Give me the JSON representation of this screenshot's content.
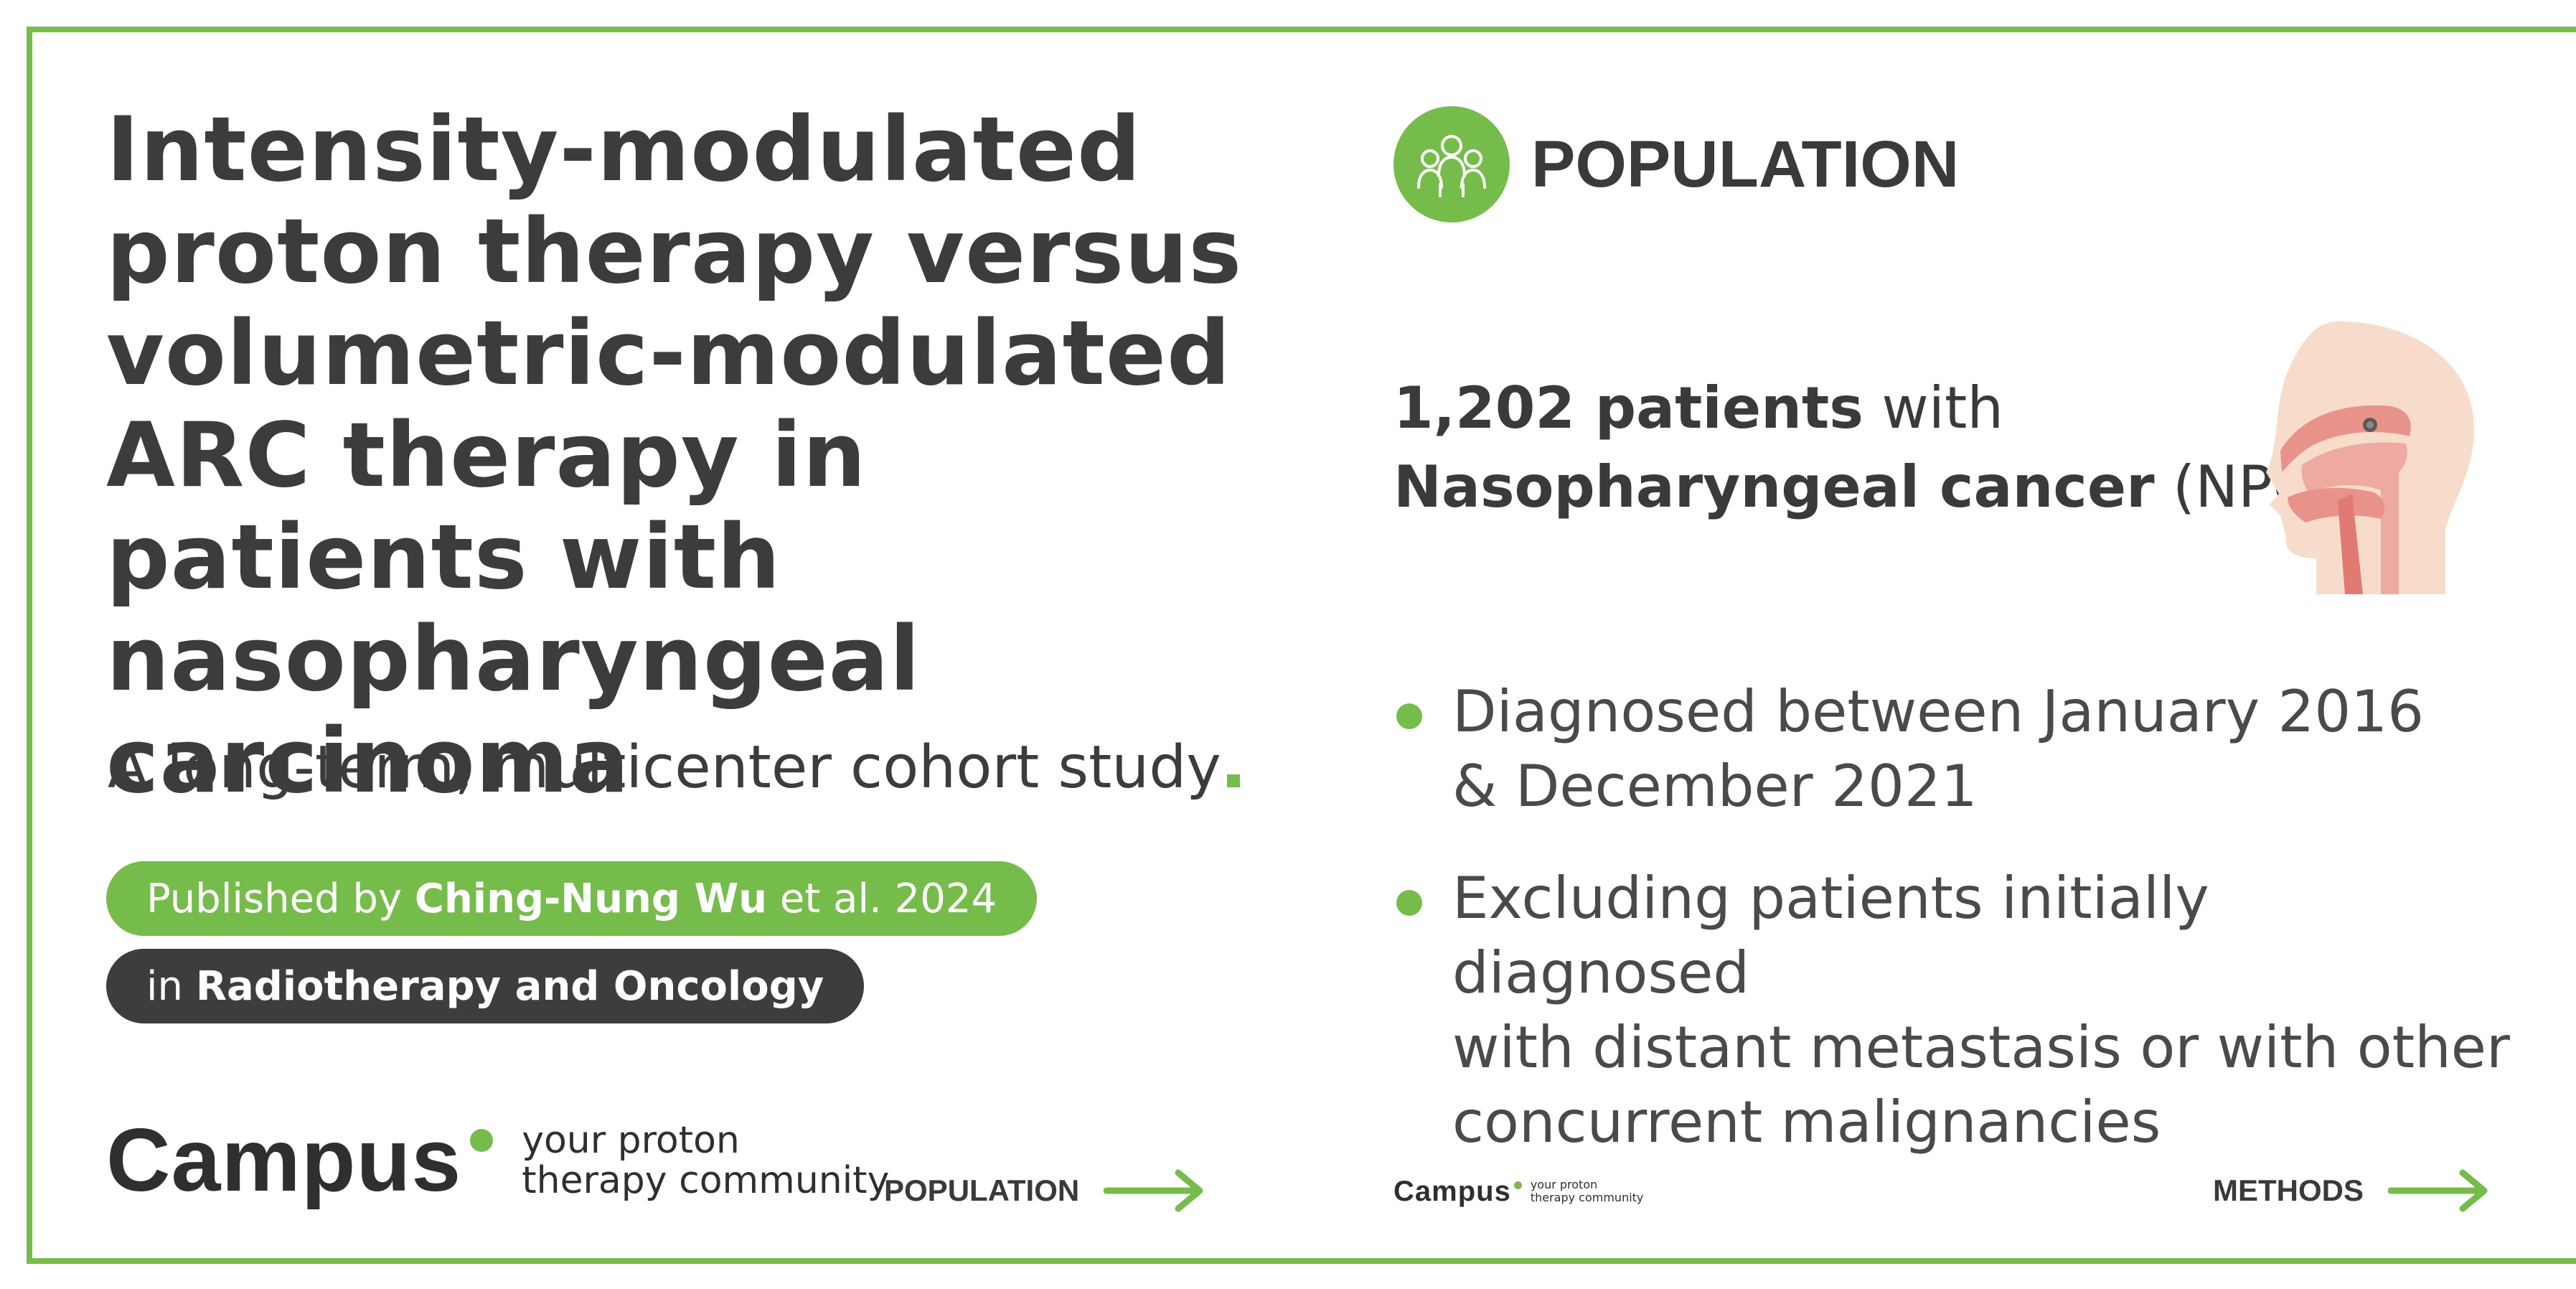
{
  "colors": {
    "accent": "#76bc4b",
    "dark": "#3d3d3d",
    "text": "#3a3a3a"
  },
  "left": {
    "title": "Intensity-modulated proton therapy versus volumetric-modulated ARC therapy in patients with nasopharyngeal carcinoma",
    "subtitle": "A long-term, multicenter cohort study",
    "published": {
      "prefix": "Published by",
      "author": "Ching-Nung Wu",
      "suffix": "et al. 2024"
    },
    "journal": {
      "prefix": "in",
      "name": "Radiotherapy and Oncology"
    },
    "logo": {
      "word": "Campus",
      "tagline_1": "your proton",
      "tagline_2": "therapy community"
    },
    "next_link": {
      "label": "POPULATION",
      "icon": "arrow-right-icon"
    }
  },
  "right": {
    "section_title": "POPULATION",
    "section_icon": "people-group-icon",
    "count_bold": "1,202 patients",
    "count_rest": "with",
    "disease_bold": "Nasopharyngeal cancer",
    "disease_abbrev": "(NPC)",
    "illustration_icon": "head-nasopharynx-icon",
    "bullets": [
      "Diagnosed between January 2016\n& December 2021",
      "Excluding patients initially diagnosed\nwith distant metastasis or with other\nconcurrent malignancies"
    ],
    "logo": {
      "word": "Campus",
      "tagline_1": "your proton",
      "tagline_2": "therapy community"
    },
    "next_link": {
      "label": "METHODS",
      "icon": "arrow-right-icon"
    }
  }
}
